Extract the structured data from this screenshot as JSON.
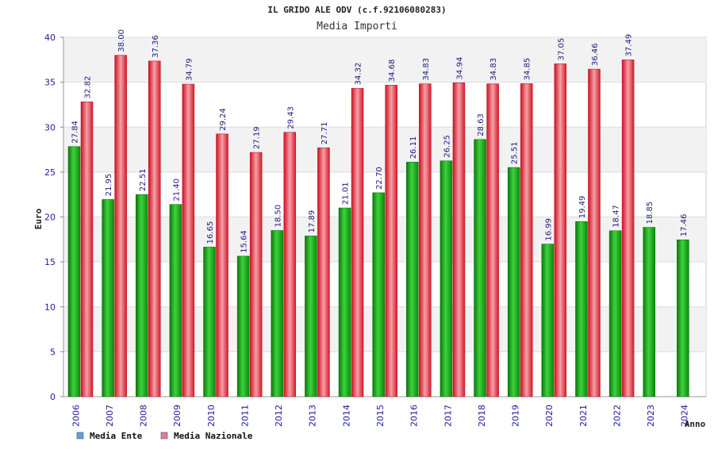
{
  "chart_data": {
    "type": "bar",
    "title": "IL GRIDO ALE ODV (c.f.92106080283)",
    "subtitle": "Media Importi",
    "xlabel": "Anno",
    "ylabel": "Euro",
    "ylim": [
      0,
      40
    ],
    "yticks": [
      0,
      5,
      10,
      15,
      20,
      25,
      30,
      35,
      40
    ],
    "grid": true,
    "legend_position": "bottom-left",
    "categories": [
      "2006",
      "2007",
      "2008",
      "2009",
      "2010",
      "2011",
      "2012",
      "2013",
      "2014",
      "2015",
      "2016",
      "2017",
      "2018",
      "2019",
      "2020",
      "2021",
      "2022",
      "2023",
      "2024"
    ],
    "series": [
      {
        "name": "Media Ente",
        "color": "#1aa51a",
        "legend_color": "#5aa0e6",
        "values": [
          27.84,
          21.95,
          22.51,
          21.4,
          16.65,
          15.64,
          18.5,
          17.89,
          21.01,
          22.7,
          26.11,
          26.25,
          28.63,
          25.51,
          16.99,
          19.49,
          18.47,
          18.85,
          17.46
        ],
        "labels": [
          "27.84",
          "21.95",
          "22.51",
          "21.40",
          "16.65",
          "15.64",
          "18.50",
          "17.89",
          "21.01",
          "22.70",
          "26.11",
          "26.25",
          "28.63",
          "25.51",
          "16.99",
          "19.49",
          "18.47",
          "18.85",
          "17.46"
        ]
      },
      {
        "name": "Media Nazionale",
        "color": "#e8283a",
        "legend_color": "#e07aa8",
        "values": [
          32.82,
          38.0,
          37.36,
          34.79,
          29.24,
          27.19,
          29.43,
          27.71,
          34.32,
          34.68,
          34.83,
          34.94,
          34.83,
          34.85,
          37.05,
          36.46,
          37.49,
          null,
          null
        ],
        "labels": [
          "32.82",
          "38.00",
          "37.36",
          "34.79",
          "29.24",
          "27.19",
          "29.43",
          "27.71",
          "34.32",
          "34.68",
          "34.83",
          "34.94",
          "34.83",
          "34.85",
          "37.05",
          "36.46",
          "37.49",
          null,
          null
        ]
      }
    ]
  }
}
